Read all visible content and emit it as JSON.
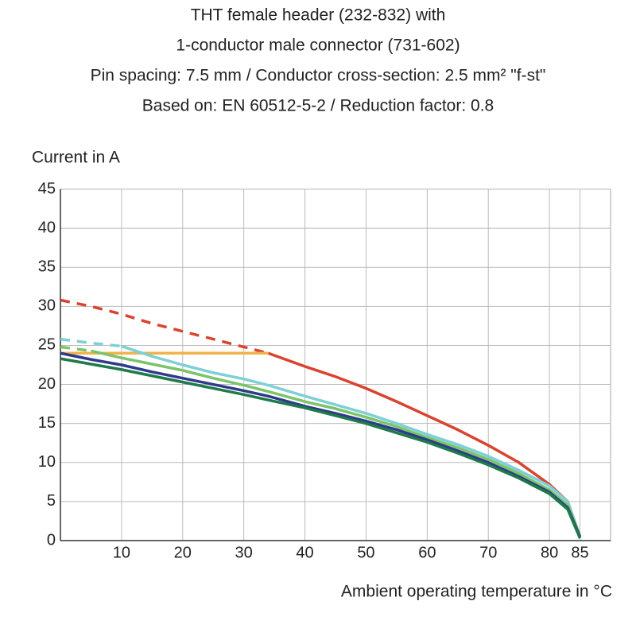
{
  "chart_data": {
    "type": "line",
    "title": [
      "THT female header (232-832) with",
      "1-conductor male connector  (731-602)",
      "Pin spacing: 7.5 mm / Conductor cross-section: 2.5 mm² \"f-st\"",
      "Based on: EN 60512-5-2 / Reduction factor: 0.8"
    ],
    "ylabel": "Current in A",
    "xlabel": "Ambient operating temperature in °C",
    "x": [
      0,
      5,
      10,
      15,
      20,
      25,
      30,
      34,
      40,
      45,
      50,
      55,
      60,
      65,
      70,
      75,
      80,
      83,
      85
    ],
    "xlim": [
      0,
      90
    ],
    "xticks": [
      10,
      20,
      30,
      40,
      50,
      60,
      70,
      80,
      85
    ],
    "ylim": [
      0,
      45
    ],
    "yticks": [
      0,
      5,
      10,
      15,
      20,
      25,
      30,
      35,
      40,
      45
    ],
    "grid": true,
    "series": [
      {
        "color": "#d9432f",
        "style": "dashed",
        "values": [
          30.8,
          30,
          29,
          27.8,
          26.8,
          25.8,
          24.8,
          24,
          null,
          null,
          null,
          null,
          null,
          null,
          null,
          null,
          null,
          null,
          null
        ]
      },
      {
        "color": "#d9432f",
        "style": "solid",
        "values": [
          null,
          null,
          null,
          null,
          null,
          null,
          null,
          24,
          22.3,
          21,
          19.5,
          17.8,
          16,
          14.2,
          12.2,
          10,
          7.2,
          5,
          0.5
        ]
      },
      {
        "color": "#f0b24a",
        "style": "solid",
        "values": [
          24,
          24,
          24,
          24,
          24,
          24,
          24,
          24,
          null,
          null,
          null,
          null,
          null,
          null,
          null,
          null,
          null,
          null,
          null
        ]
      },
      {
        "color": "#7fcfd6",
        "style": "dashed",
        "values": [
          25.8,
          25.3,
          24.9,
          null,
          null,
          null,
          null,
          null,
          null,
          null,
          null,
          null,
          null,
          null,
          null,
          null,
          null,
          null,
          null
        ]
      },
      {
        "color": "#7fcfd6",
        "style": "solid",
        "values": [
          null,
          null,
          24.9,
          23.6,
          22.5,
          21.5,
          20.7,
          19.9,
          18.5,
          17.4,
          16.3,
          15,
          13.6,
          12.3,
          10.8,
          9,
          7,
          5,
          0.5
        ]
      },
      {
        "color": "#7cc46a",
        "style": "dashed",
        "values": [
          24.8,
          24.3,
          null,
          null,
          null,
          null,
          null,
          null,
          null,
          null,
          null,
          null,
          null,
          null,
          null,
          null,
          null,
          null,
          null
        ]
      },
      {
        "color": "#7cc46a",
        "style": "solid",
        "values": [
          null,
          24.3,
          23.4,
          22.6,
          21.8,
          20.8,
          19.9,
          19.1,
          17.8,
          16.9,
          15.8,
          14.6,
          13.2,
          11.9,
          10.4,
          8.6,
          6.5,
          4.5,
          0.5
        ]
      },
      {
        "color": "#2e3a8c",
        "style": "solid",
        "values": [
          24,
          23.2,
          22.5,
          21.6,
          20.8,
          20,
          19.2,
          18.5,
          17.2,
          16.3,
          15.3,
          14.2,
          12.9,
          11.5,
          10,
          8.2,
          6.2,
          4.2,
          0.5
        ]
      },
      {
        "color": "#1f7a4a",
        "style": "solid",
        "values": [
          23.3,
          22.6,
          21.9,
          21.1,
          20.3,
          19.5,
          18.7,
          18,
          17,
          16,
          15,
          13.8,
          12.6,
          11.2,
          9.7,
          8,
          6,
          4,
          0.3
        ]
      }
    ]
  }
}
